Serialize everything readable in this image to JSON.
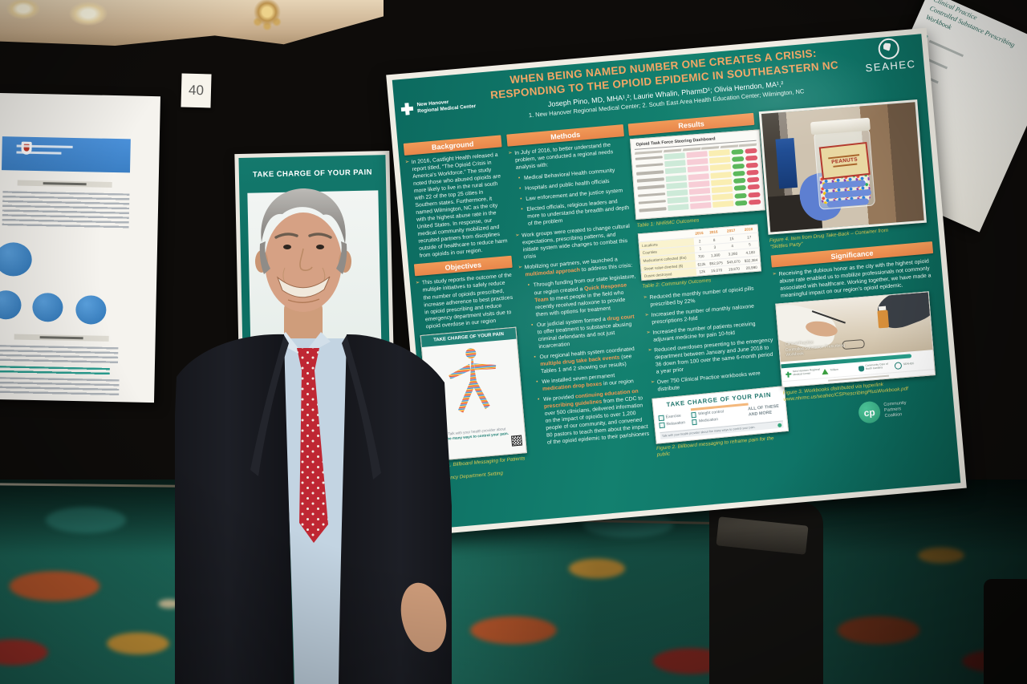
{
  "scene": {
    "board_number": "40"
  },
  "colors": {
    "poster_teal": "#107465",
    "section_orange": "#ee9350",
    "title_orange": "#f3a765",
    "caption_yellow": "#dcc94f",
    "cp_green": "#3eb489",
    "tie_red": "#bf2733"
  },
  "poster": {
    "logo": {
      "line1": "New Hanover",
      "line2": "Regional Medical Center"
    },
    "seahec": "SEAHEC",
    "title_line1": "WHEN BEING NAMED NUMBER ONE CREATES A CRISIS:",
    "title_line2": "RESPONDING TO THE OPIOID EPIDEMIC IN SOUTHEASTERN NC",
    "authors": "Joseph Pino, MD, MHA¹,²; Laurie Whalin, PharmD¹; Olivia Herndon, MA¹,²",
    "affiliations": "1. New Hanover Regional Medical Center;   2. South East Area Health Education Center; Wilmington, NC",
    "background": {
      "header": "Background",
      "text": "In 2016, Castlight Health released a report titled, “The Opioid Crisis in America’s Workforce.” The study noted those who abused opioids are more likely to live in the rural south with 22 of the top 25 cities in Southern states. Furthermore, it named Wilmington, NC as the city with the highest abuse rate in the United States. In response, our medical community mobilized and recruited partners from disciplines outside of healthcare to reduce harm from opioids in our region."
    },
    "objectives": {
      "header": "Objectives",
      "text": "This study reports the outcome of the multiple initiatives to safely reduce the number of opioids prescribed, increase adherence to best practices in opioid prescribing and reduce emergency department visits due to opioid overdose in our region"
    },
    "methods": {
      "header": "Methods",
      "b1": "In July of 2016, to better understand the problem, we conducted a regional needs analysis with:",
      "b1_subs": [
        "Medical Behavioral Health community",
        "Hospitals and public health officials",
        "Law enforcement and the justice system",
        "Elected officials, religious leaders and more to understand the breadth and depth of the problem"
      ],
      "b2": "Work groups were created to change cultural expectations, prescribing patterns, and initiate system wide changes to combat this crisis",
      "b3_pre": "Mobilizing our partners, we launched a ",
      "b3_hl": "multimodal approach",
      "b3_post": " to address this crisis:",
      "s1_pre": "Through funding from our state legislature, our region created a ",
      "s1_hl": "Quick Response Team",
      "s1_post": " to meet people in the field who recently received naloxone to provide them with options for treatment",
      "s2_pre": "Our judicial system formed a ",
      "s2_hl": "drug court",
      "s2_post": " to offer treatment to substance abusing criminal defendants and not just incarceration",
      "s3_pre": "Our regional health system coordinated ",
      "s3_hl": "multiple drug take back events",
      "s3_post": " (see Tables 1 and 2 showing our results)",
      "b4_pre": "We installed seven permanent ",
      "b4_hl": "medication drop boxes",
      "b4_post": " in our region",
      "b5_pre": "We provided ",
      "b5_hl": "continuing education on prescribing guidelines",
      "b5_post": " from the CDC to over 500 clinicians, delivered information on the impact of opioids to over 1,200 people of our community, and convened 80 pastors to teach them about the impact of the opioid epidemic to their parishioners"
    },
    "results": {
      "header": "Results",
      "bullets": [
        "Reduced the monthly number of opioid pills prescribed by 22%",
        "Increased the number of monthly naloxone prescriptions 2-fold",
        "Increased the number of patients receiving adjuvant medicine for pain 10-fold",
        "Reduced overdoses presenting to the emergency department between January and June 2018 to 36 down from 100 over the same 6-month period a year prior",
        "Over 750 Clinical Practice workbooks were distribute"
      ]
    },
    "significance": {
      "header": "Significance",
      "text": "Receiving the dubious honor as the city with the highest opioid abuse rate enabled us to mobilize professionals not commonly associated with healthcare. Working together, we have made a meaningful impact on our region’s opioid epidemic."
    },
    "dashboard": {
      "title": "Opioid Task Force Steering Dashboard",
      "palette": {
        "mint": "#cdead8",
        "pink": "#f7cdd6",
        "yellow": "#faeeb2",
        "green": "#5cb85c",
        "red": "#e05c6e"
      },
      "rows": [
        [
          "mint",
          "pink",
          "yellow",
          "green",
          "red"
        ],
        [
          "mint",
          "pink",
          "yellow",
          "green",
          "red"
        ],
        [
          "mint",
          "pink",
          "yellow",
          "green",
          "red"
        ],
        [
          "mint",
          "pink",
          "yellow",
          "green",
          "red"
        ],
        [
          "mint",
          "pink",
          "yellow",
          "green",
          "red"
        ],
        [
          "mint",
          "pink",
          "yellow",
          "green",
          "red"
        ],
        [
          "mint",
          "pink",
          "yellow",
          "green",
          "red"
        ],
        [
          "mint",
          "pink",
          "yellow",
          "green",
          "red"
        ]
      ]
    },
    "table1_caption": "Table 1: NHRMC Outcomes",
    "table2_caption": "Table 2: Community Outcomes",
    "nhrmc_table": {
      "columns": [
        "",
        "2015",
        "2016",
        "2017",
        "2018"
      ],
      "rows": [
        [
          "Locations",
          "2",
          "8",
          "15",
          "17"
        ],
        [
          "Counties",
          "1",
          "3",
          "4",
          "5"
        ],
        [
          "Medications collected (lbs)",
          "700",
          "1,380",
          "3,280",
          "4,160"
        ],
        [
          "Street value diverted ($)",
          "$12k",
          "$52,975",
          "$43,070",
          "$32,384"
        ],
        [
          "Doses destroyed",
          "12k",
          "15,070",
          "19,870",
          "28,990"
        ]
      ]
    },
    "figure1": {
      "flyer_title": "TAKE CHARGE OF YOUR PAIN",
      "flyer_line1": "Talk with your health provider about",
      "flyer_line2": "the many ways to control your pain.",
      "caption_line1": "Figure 1. Billboard Messaging for Patients in the",
      "caption_line2": "Emergency Department Setting"
    },
    "figure2": {
      "title": "TAKE CHARGE OF YOUR PAIN",
      "options_left": [
        "Exercise",
        "Relaxation"
      ],
      "options_mid": [
        "Weight control",
        "Medication"
      ],
      "options_right": "ALL OF THESE AND MORE",
      "footer": "Talk with your health provider about the many ways to control your pain.",
      "caption": "Figure 2. Billboard messaging to reframe pain for the public"
    },
    "figure3": {
      "workbook_lines": [
        "Clinical Practice",
        "Controlled Substance Prescribing",
        "Workbook"
      ],
      "logos": [
        "New Hanover Regional Medical Center",
        "Trillium",
        "Community Care of North Carolina",
        "SEAHEC"
      ],
      "caption_line1": "Figure 3. Workbooks distributed via hyperlink",
      "caption_line2": "www.nhrmc.us/seahec/CSPrescribingPlusWorkbook.pdf"
    },
    "figure4": {
      "jar_label": "PEANUTS",
      "caption_line1": "Figure 4. Item from Drug Take-Back – Container from",
      "caption_line2": "“Skittles Party”"
    },
    "cp_logo": {
      "initials": "cp",
      "lines": [
        "Community",
        "Partners",
        "Coalition"
      ]
    }
  },
  "banner": {
    "t1": "TAKE ",
    "t2": "CHARGE",
    "t3": " OF YOUR PAIN"
  },
  "right_poster": {
    "lines": [
      "Clinical Practice",
      "Controlled Substance Prescribing",
      "Workbook"
    ]
  }
}
